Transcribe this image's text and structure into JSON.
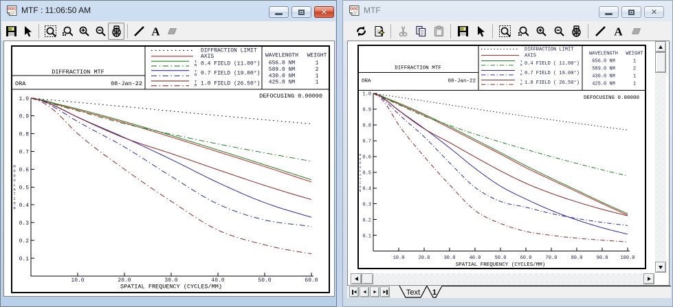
{
  "left_window": {
    "title": "MTF : 11:06:50 AM",
    "window_buttons": [
      "minimize",
      "maximize",
      "close"
    ],
    "toolbar": [
      {
        "icon": "save-icon"
      },
      {
        "icon": "select-arrow-icon"
      },
      {
        "sep": true
      },
      {
        "icon": "zoom-box-icon"
      },
      {
        "icon": "zoom-previous-icon"
      },
      {
        "icon": "zoom-in-icon"
      },
      {
        "icon": "zoom-out-icon"
      },
      {
        "icon": "fit-view-icon",
        "pressed": true
      },
      {
        "sep": true
      },
      {
        "icon": "line-tool-icon"
      },
      {
        "icon": "text-tool-icon"
      },
      {
        "icon": "eraser-icon",
        "disabled": true
      }
    ]
  },
  "right_window": {
    "title": "MTF",
    "window_buttons": [
      "minimize",
      "maximize",
      "close"
    ],
    "toolbar": [
      {
        "icon": "refresh-icon"
      },
      {
        "icon": "page-setup-icon"
      },
      {
        "sep": true
      },
      {
        "icon": "cut-icon",
        "disabled": true
      },
      {
        "icon": "copy-icon"
      },
      {
        "icon": "paste-icon",
        "disabled": true
      },
      {
        "sep": true
      },
      {
        "icon": "save-icon"
      },
      {
        "icon": "select-arrow-icon"
      },
      {
        "sep": true
      },
      {
        "icon": "zoom-box-icon"
      },
      {
        "icon": "zoom-previous-icon"
      },
      {
        "icon": "zoom-in-icon"
      },
      {
        "icon": "zoom-out-icon"
      },
      {
        "icon": "fit-view-icon"
      },
      {
        "sep": true
      },
      {
        "icon": "line-tool-icon"
      },
      {
        "icon": "text-tool-icon"
      },
      {
        "icon": "eraser-icon",
        "disabled": true
      }
    ],
    "tabs": [
      {
        "label": "Text",
        "active": false
      },
      {
        "label": "1",
        "active": true
      }
    ]
  },
  "plot_header": {
    "title": "DIFFRACTION MTF",
    "org": "ORA",
    "date": "08-Jan-22",
    "defocusing": "DEFOCUSING  0.00000",
    "wavelength_table": {
      "col1": "WAVELENGTH",
      "col2": "WEIGHT",
      "rows": [
        [
          "656.0 NM",
          "1"
        ],
        [
          "589.0 NM",
          "2"
        ],
        [
          "430.0 NM",
          "1"
        ],
        [
          "425.0 NM",
          "1"
        ]
      ]
    },
    "legend": [
      {
        "label": "DIFFRACTION LIMIT",
        "series": 0
      },
      {
        "label": "AXIS",
        "series": 1
      },
      {
        "label": "0.4 FIELD (11.00°)",
        "label_right": "0.4 FIELD ( 11.00°)",
        "t_series": 2,
        "r_series": 3
      },
      {
        "label": "0.7 FIELD (19.00°)",
        "label_right": "0.7 FIELD ( 19.00°)",
        "t_series": 4,
        "r_series": 5
      },
      {
        "label": "1.0 FIELD (26.50°)",
        "label_right": "1.0 FIELD ( 26.50°)",
        "t_series": 6,
        "r_series": 7
      }
    ],
    "t_marker": "T",
    "r_marker": "R"
  },
  "chart_data": {
    "type": "line",
    "xlabel": "SPATIAL FREQUENCY (CYCLES/MM)",
    "ylabel": "MODULATION",
    "series": [
      {
        "name": "DIFFRACTION LIMIT",
        "color": "#000000",
        "style": "dot",
        "points": [
          [
            0,
            1.0
          ],
          [
            10,
            0.976
          ],
          [
            20,
            0.952
          ],
          [
            30,
            0.927
          ],
          [
            40,
            0.902
          ],
          [
            50,
            0.878
          ],
          [
            60,
            0.855
          ],
          [
            70,
            0.833
          ],
          [
            80,
            0.811
          ],
          [
            90,
            0.789
          ],
          [
            100,
            0.768
          ]
        ]
      },
      {
        "name": "AXIS",
        "color": "#c02323",
        "style": "solid",
        "points": [
          [
            0,
            1.0
          ],
          [
            2.5,
            0.988
          ],
          [
            5,
            0.968
          ],
          [
            10,
            0.933
          ],
          [
            20,
            0.861
          ],
          [
            30,
            0.781
          ],
          [
            40,
            0.698
          ],
          [
            50,
            0.615
          ],
          [
            60,
            0.529
          ],
          [
            70,
            0.452
          ],
          [
            80,
            0.377
          ],
          [
            90,
            0.301
          ],
          [
            100,
            0.228
          ]
        ]
      },
      {
        "name": "0.4 FIELD TANGENTIAL",
        "color": "#1e7d1e",
        "style": "solid",
        "points": [
          [
            0,
            1.0
          ],
          [
            2.5,
            0.989
          ],
          [
            5,
            0.971
          ],
          [
            10,
            0.939
          ],
          [
            20,
            0.868
          ],
          [
            30,
            0.79
          ],
          [
            40,
            0.708
          ],
          [
            50,
            0.625
          ],
          [
            60,
            0.541
          ],
          [
            70,
            0.462
          ],
          [
            80,
            0.386
          ],
          [
            90,
            0.309
          ],
          [
            100,
            0.237
          ]
        ]
      },
      {
        "name": "0.4 FIELD RADIAL",
        "color": "#1e7d1e",
        "style": "dashdot",
        "points": [
          [
            0,
            1.0
          ],
          [
            2.5,
            0.987
          ],
          [
            5,
            0.965
          ],
          [
            10,
            0.928
          ],
          [
            20,
            0.856
          ],
          [
            30,
            0.797
          ],
          [
            40,
            0.742
          ],
          [
            50,
            0.692
          ],
          [
            60,
            0.645
          ],
          [
            70,
            0.599
          ],
          [
            80,
            0.556
          ],
          [
            90,
            0.515
          ],
          [
            100,
            0.477
          ]
        ]
      },
      {
        "name": "0.7 FIELD TANGENTIAL",
        "color": "#2929aa",
        "style": "solid",
        "points": [
          [
            0,
            1.0
          ],
          [
            2.5,
            0.985
          ],
          [
            5,
            0.958
          ],
          [
            10,
            0.893
          ],
          [
            20,
            0.778
          ],
          [
            30,
            0.655
          ],
          [
            40,
            0.525
          ],
          [
            50,
            0.412
          ],
          [
            60,
            0.33
          ],
          [
            70,
            0.258
          ],
          [
            80,
            0.198
          ],
          [
            90,
            0.148
          ],
          [
            100,
            0.107
          ]
        ]
      },
      {
        "name": "0.7 FIELD RADIAL",
        "color": "#2929aa",
        "style": "dashdot",
        "points": [
          [
            0,
            1.0
          ],
          [
            2.5,
            0.982
          ],
          [
            5,
            0.948
          ],
          [
            10,
            0.868
          ],
          [
            20,
            0.725
          ],
          [
            30,
            0.56
          ],
          [
            40,
            0.404
          ],
          [
            50,
            0.315
          ],
          [
            60,
            0.278
          ],
          [
            70,
            0.238
          ],
          [
            80,
            0.207
          ],
          [
            90,
            0.182
          ],
          [
            100,
            0.162
          ]
        ]
      },
      {
        "name": "1.0 FIELD TANGENTIAL",
        "color": "#8b2424",
        "style": "solid",
        "points": [
          [
            0,
            1.0
          ],
          [
            2.5,
            0.985
          ],
          [
            5,
            0.957
          ],
          [
            10,
            0.892
          ],
          [
            20,
            0.776
          ],
          [
            30,
            0.688
          ],
          [
            40,
            0.597
          ],
          [
            50,
            0.509
          ],
          [
            60,
            0.43
          ],
          [
            70,
            0.366
          ],
          [
            80,
            0.312
          ],
          [
            90,
            0.265
          ],
          [
            100,
            0.224
          ]
        ]
      },
      {
        "name": "1.0 FIELD RADIAL",
        "color": "#8b2424",
        "style": "dashdot",
        "points": [
          [
            0,
            1.0
          ],
          [
            2.5,
            0.975
          ],
          [
            5,
            0.93
          ],
          [
            10,
            0.8
          ],
          [
            20,
            0.6
          ],
          [
            30,
            0.42
          ],
          [
            40,
            0.258
          ],
          [
            50,
            0.175
          ],
          [
            60,
            0.125
          ],
          [
            70,
            0.1
          ],
          [
            80,
            0.082
          ],
          [
            90,
            0.069
          ],
          [
            100,
            0.058
          ]
        ]
      }
    ],
    "charts": [
      {
        "id": "left",
        "xlim": [
          0,
          60
        ],
        "ylim": [
          0,
          1.0
        ],
        "xticks": [
          [
            "10.0",
            10
          ],
          [
            "20.0",
            20
          ],
          [
            "30.0",
            30
          ],
          [
            "40.0",
            40
          ],
          [
            "50.0",
            50
          ],
          [
            "60.0",
            60
          ]
        ],
        "yticks": [
          [
            "0.1",
            0.1
          ],
          [
            "0.2",
            0.2
          ],
          [
            "0.3",
            0.3
          ],
          [
            "0.4",
            0.4
          ],
          [
            "0.5",
            0.5
          ],
          [
            "0.6",
            0.6
          ],
          [
            "0.7",
            0.7
          ],
          [
            "0.8",
            0.8
          ],
          [
            "0.9",
            0.9
          ],
          [
            "1.0",
            1.0
          ]
        ]
      },
      {
        "id": "right",
        "xlim": [
          0,
          100
        ],
        "ylim": [
          0,
          1.0
        ],
        "xticks": [
          [
            "10.0",
            10
          ],
          [
            "20.0",
            20
          ],
          [
            "30.0",
            30
          ],
          [
            "40.0",
            40
          ],
          [
            "50.0",
            50
          ],
          [
            "60.0",
            60
          ],
          [
            "70.0",
            70
          ],
          [
            "80.0",
            80
          ],
          [
            "90.0",
            90
          ],
          [
            "100.0",
            100
          ]
        ],
        "yticks": [
          [
            "0.1",
            0.1
          ],
          [
            "0.2",
            0.2
          ],
          [
            "0.3",
            0.3
          ],
          [
            "0.4",
            0.4
          ],
          [
            "0.5",
            0.5
          ],
          [
            "0.6",
            0.6
          ],
          [
            "0.7",
            0.7
          ],
          [
            "0.8",
            0.8
          ],
          [
            "0.9",
            0.9
          ],
          [
            "1.0",
            1.0
          ]
        ]
      }
    ]
  }
}
